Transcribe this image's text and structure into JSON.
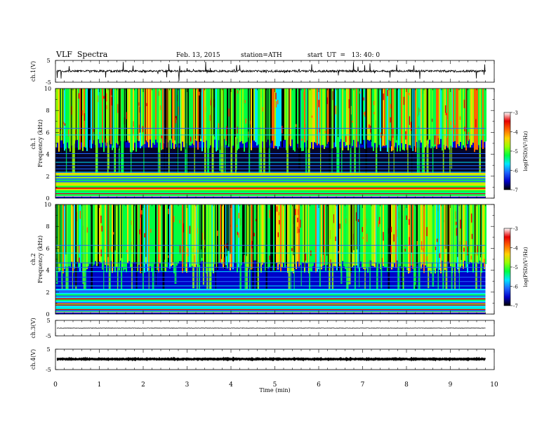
{
  "header": {
    "title": "VLF  Spectra",
    "date": "Feb. 13, 2015",
    "station": "station=ATH",
    "start": "start  UT  =   13: 40: 0"
  },
  "colors": {
    "background": "#ffffff",
    "axis": "#000000",
    "colormap": [
      "#000000",
      "#0000c8",
      "#1e64ff",
      "#00e6ff",
      "#00ff40",
      "#96ff00",
      "#ffd200",
      "#ff6400",
      "#e60000",
      "#ffffff"
    ]
  },
  "chart_data": [
    {
      "type": "line",
      "name": "ch1-waveform",
      "ylabel": "ch.1(V)",
      "ylim": [
        -5,
        5
      ],
      "yticks": [
        "5",
        "-5"
      ],
      "x_range_min": [
        0,
        9.8
      ],
      "baseline_v": 0.1,
      "burst_spikes_v": 4.5
    },
    {
      "type": "heatmap",
      "name": "ch1-spectrogram",
      "ylabel": "ch.1\nFrequency (kHz)",
      "ylim": [
        0,
        10
      ],
      "yticks": [
        "0",
        "2",
        "4",
        "6",
        "8",
        "10"
      ],
      "x_range_min": [
        0,
        9.8
      ],
      "colorbar": {
        "label": "log(PSD)(V²/Hz)",
        "range": [
          -7,
          -3
        ],
        "ticks": [
          "-3",
          "-4",
          "-5",
          "-6",
          "-7"
        ]
      }
    },
    {
      "type": "heatmap",
      "name": "ch2-spectrogram",
      "ylabel": "ch.2\nFrequency (kHz)",
      "ylim": [
        0,
        10
      ],
      "yticks": [
        "0",
        "2",
        "4",
        "6",
        "8",
        "10"
      ],
      "x_range_min": [
        0,
        9.8
      ],
      "colorbar": {
        "label": "log(PSD)(V²/Hz)",
        "range": [
          -7,
          -3
        ],
        "ticks": [
          "-3",
          "-4",
          "-5",
          "-6",
          "-7"
        ]
      }
    },
    {
      "type": "line",
      "name": "ch3-waveform",
      "ylabel": "ch.3(V)",
      "ylim": [
        -5,
        5
      ],
      "yticks": [
        "5",
        "-5"
      ],
      "x_range_min": [
        0,
        9.8
      ],
      "baseline_v": 0
    },
    {
      "type": "line",
      "name": "ch4-waveform",
      "ylabel": "ch.4(V)",
      "ylim": [
        -5,
        5
      ],
      "yticks": [
        "5",
        "-5"
      ],
      "x_range_min": [
        0,
        9.8
      ],
      "baseline_v": 0.15
    },
    {
      "type": "axis",
      "name": "time-axis",
      "xlabel": "Time  (min)",
      "xlim": [
        0,
        10
      ],
      "xticks": [
        "0",
        "1",
        "2",
        "3",
        "4",
        "5",
        "6",
        "7",
        "8",
        "9",
        "10"
      ]
    }
  ]
}
